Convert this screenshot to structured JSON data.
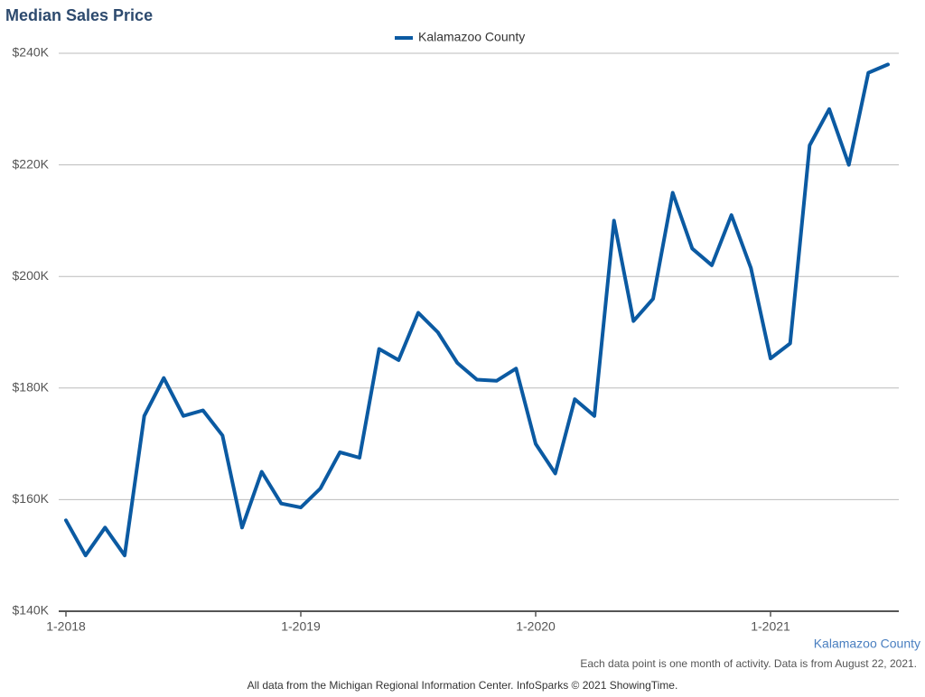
{
  "chart_data": {
    "type": "line",
    "title": "Median Sales Price",
    "categories": [
      "1-2018",
      null,
      null,
      null,
      null,
      null,
      null,
      null,
      null,
      null,
      null,
      null,
      "1-2019",
      null,
      null,
      null,
      null,
      null,
      null,
      null,
      null,
      null,
      null,
      null,
      "1-2020",
      null,
      null,
      null,
      null,
      null,
      null,
      null,
      null,
      null,
      null,
      null,
      "1-2021",
      null,
      null,
      null,
      null,
      null,
      null
    ],
    "series": [
      {
        "name": "Kalamazoo County",
        "color": "#0b5aa2",
        "values": [
          156300,
          150000,
          155000,
          150000,
          175000,
          181800,
          175000,
          176000,
          171500,
          155000,
          165000,
          159300,
          158600,
          162000,
          168500,
          167500,
          187000,
          185000,
          193500,
          190000,
          184500,
          181500,
          181300,
          183500,
          170000,
          164700,
          178000,
          175000,
          210000,
          192000,
          196000,
          215000,
          205000,
          202000,
          211000,
          201500,
          185300,
          188000,
          223500,
          230000,
          220000,
          236500,
          238000
        ]
      }
    ],
    "ylim": [
      140000,
      240000
    ],
    "yticks": [
      {
        "value": 140000,
        "label": "$140K"
      },
      {
        "value": 160000,
        "label": "$160K"
      },
      {
        "value": 180000,
        "label": "$180K"
      },
      {
        "value": 200000,
        "label": "$200K"
      },
      {
        "value": 220000,
        "label": "$220K"
      },
      {
        "value": 240000,
        "label": "$240K"
      }
    ],
    "grid": true,
    "annotations": [
      "Kalamazoo County",
      "Each data point is one month of activity. Data is from August 22, 2021.",
      "All data from the Michigan Regional Information Center. InfoSparks © 2021 ShowingTime."
    ]
  }
}
